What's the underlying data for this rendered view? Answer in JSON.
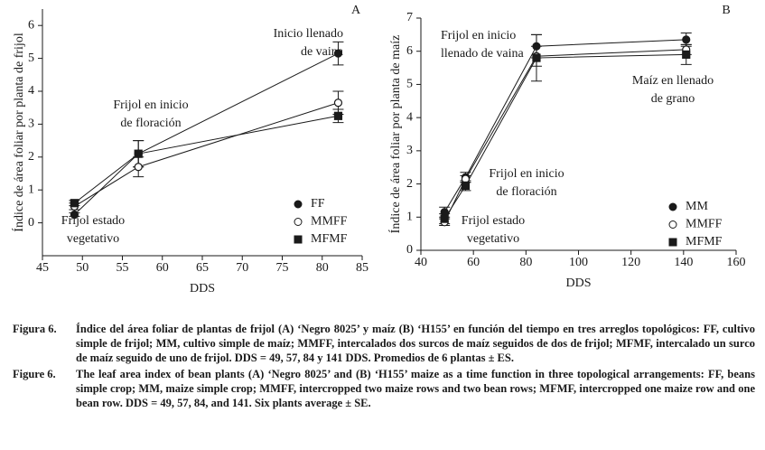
{
  "chart_data": [
    {
      "type": "line",
      "panel": "A",
      "xlabel": "DDS",
      "ylabel": "Índice de área foliar por planta de frijol",
      "x": [
        49,
        57,
        82
      ],
      "xlim": [
        45,
        85
      ],
      "xticks": [
        45,
        50,
        55,
        60,
        65,
        70,
        75,
        80,
        85
      ],
      "ylim": [
        -1,
        6.5
      ],
      "yticks": [
        0,
        1,
        2,
        3,
        4,
        5,
        6
      ],
      "legend": "lower right",
      "series": [
        {
          "name": "FF",
          "color": "#1a1a1a",
          "marker": "circle",
          "filled": true,
          "values": [
            0.25,
            2.1,
            5.15
          ],
          "errors": [
            0.05,
            0.4,
            0.35
          ]
        },
        {
          "name": "MMFF",
          "color": "#1a1a1a",
          "marker": "circle",
          "filled": false,
          "values": [
            0.5,
            1.7,
            3.65
          ],
          "errors": [
            0.1,
            0.3,
            0.35
          ]
        },
        {
          "name": "MFMF",
          "color": "#1a1a1a",
          "marker": "square",
          "filled": true,
          "values": [
            0.6,
            2.1,
            3.25
          ],
          "errors": [
            0.08,
            0.4,
            0.2
          ]
        }
      ],
      "annotations": [
        [
          "Inicio llenado",
          "de vaina"
        ],
        [
          "Frijol en inicio",
          "de floración"
        ],
        [
          "Frijol estado",
          "vegetativo"
        ]
      ]
    },
    {
      "type": "line",
      "panel": "B",
      "xlabel": "DDS",
      "ylabel": "Índice de área foliar por planta de maíz",
      "x": [
        49,
        57,
        84,
        141
      ],
      "xlim": [
        40,
        160
      ],
      "xticks": [
        40,
        60,
        80,
        100,
        120,
        140,
        160
      ],
      "ylim": [
        0,
        7
      ],
      "yticks": [
        0,
        1,
        2,
        3,
        4,
        5,
        6,
        7
      ],
      "legend": "lower right",
      "series": [
        {
          "name": "MM",
          "color": "#1a1a1a",
          "marker": "circle",
          "filled": true,
          "values": [
            1.15,
            2.2,
            6.15,
            6.35
          ],
          "errors": [
            0.15,
            0.15,
            0.35,
            0.2
          ]
        },
        {
          "name": "MMFF",
          "color": "#1a1a1a",
          "marker": "circle",
          "filled": false,
          "values": [
            0.85,
            2.15,
            5.85,
            6.05
          ],
          "errors": [
            0.1,
            0.1,
            0.3,
            0.15
          ]
        },
        {
          "name": "MFMF",
          "color": "#1a1a1a",
          "marker": "square",
          "filled": true,
          "values": [
            0.95,
            1.95,
            5.8,
            5.9
          ],
          "errors": [
            0.15,
            0.15,
            0.7,
            0.3
          ]
        }
      ],
      "annotations": [
        [
          "Frijol en inicio",
          "llenado de vaina"
        ],
        [
          "Maíz en llenado",
          "de grano"
        ],
        [
          "Frijol en inicio",
          "de floración"
        ],
        [
          "Frijol estado",
          "vegetativo"
        ]
      ]
    }
  ],
  "caption": [
    {
      "label": "Figura 6.",
      "text": "Índice del área foliar de plantas de frijol (A) ‘Negro 8025’ y maíz (B) ‘H155’ en función del tiempo en tres arreglos topológicos: FF, cultivo simple de frijol; MM, cultivo simple de maíz; MMFF, intercalados dos surcos de maíz seguidos de dos de frijol; MFMF, intercalado un surco de maíz seguido de uno de frijol. DDS = 49, 57, 84 y 141 DDS. Promedios de 6 plantas ± ES."
    },
    {
      "label": "Figure 6.",
      "text": "The leaf area index of bean plants (A) ‘Negro 8025’ and (B) ‘H155’ maize as a time function in three topological arrangements: FF, beans simple crop; MM, maize simple crop; MMFF, intercropped two maize rows and two bean rows; MFMF, intercropped one maize row and one bean row. DDS = 49, 57, 84, and 141. Six plants average ± SE."
    }
  ]
}
